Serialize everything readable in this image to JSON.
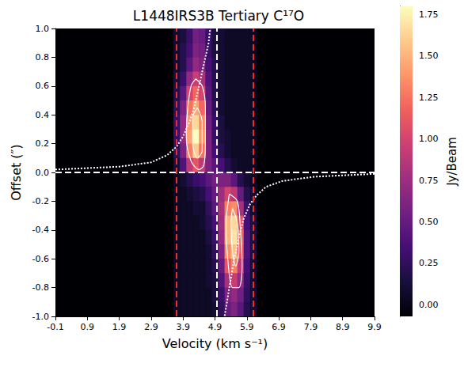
{
  "chart_data": {
    "type": "heatmap",
    "title": "L1448IRS3B Tertiary C¹⁷O",
    "x_label": "Velocity (km s⁻¹)",
    "y_label": "Offset (″)",
    "xlim": [
      -0.1,
      9.9
    ],
    "xticks": [
      -0.1,
      0.9,
      1.9,
      2.9,
      3.9,
      4.9,
      5.9,
      6.9,
      7.9,
      8.9,
      9.9
    ],
    "ylim": [
      -1.0,
      1.0
    ],
    "yticks": [
      {
        "value": -1.0,
        "label": "-1.0"
      },
      -0.8,
      -0.6,
      -0.4,
      -0.2,
      {
        "value": 0.0,
        "label": "0.0"
      },
      0.2,
      0.4,
      0.6,
      0.8,
      {
        "value": 1.0,
        "label": "1.0"
      }
    ],
    "grid": false,
    "cells": {
      "x": [
        3.7,
        3.9,
        4.1,
        4.3,
        4.5,
        4.7,
        4.9,
        5.1,
        5.3,
        5.5,
        5.7,
        5.9,
        6.1
      ],
      "y": [
        0.95,
        0.85,
        0.75,
        0.65,
        0.55,
        0.45,
        0.35,
        0.25,
        0.15,
        0.05,
        -0.05,
        -0.15,
        -0.25,
        -0.35,
        -0.45,
        -0.55,
        -0.65,
        -0.75,
        -0.85,
        -0.95
      ],
      "values": [
        [
          0.1,
          0.15,
          0.3,
          0.55,
          0.5,
          0.3,
          0.15,
          0.1,
          0.05,
          0.05,
          0.05,
          0.05,
          0.05
        ],
        [
          0.1,
          0.2,
          0.35,
          0.6,
          0.55,
          0.3,
          0.15,
          0.1,
          0.05,
          0.05,
          0.05,
          0.05,
          0.05
        ],
        [
          0.1,
          0.2,
          0.45,
          0.7,
          0.6,
          0.35,
          0.2,
          0.1,
          0.05,
          0.05,
          0.05,
          0.05,
          0.05
        ],
        [
          0.15,
          0.3,
          0.7,
          0.95,
          0.8,
          0.4,
          0.2,
          0.1,
          0.05,
          0.05,
          0.05,
          0.05,
          0.05
        ],
        [
          0.2,
          0.45,
          1.0,
          1.2,
          1.0,
          0.45,
          0.2,
          0.1,
          0.05,
          0.05,
          0.05,
          0.05,
          0.05
        ],
        [
          0.25,
          0.6,
          1.25,
          1.45,
          1.2,
          0.5,
          0.25,
          0.1,
          0.05,
          0.05,
          0.05,
          0.05,
          0.05
        ],
        [
          0.3,
          0.7,
          1.4,
          1.65,
          1.35,
          0.55,
          0.3,
          0.15,
          0.05,
          0.05,
          0.05,
          0.05,
          0.05
        ],
        [
          0.3,
          0.7,
          1.45,
          1.8,
          1.4,
          0.6,
          0.3,
          0.15,
          0.1,
          0.05,
          0.05,
          0.05,
          0.05
        ],
        [
          0.25,
          0.6,
          1.3,
          1.6,
          1.25,
          0.6,
          0.35,
          0.2,
          0.1,
          0.05,
          0.05,
          0.05,
          0.05
        ],
        [
          0.15,
          0.4,
          0.9,
          1.1,
          0.9,
          0.6,
          0.45,
          0.35,
          0.2,
          0.1,
          0.05,
          0.05,
          0.05
        ],
        [
          0.05,
          0.1,
          0.2,
          0.3,
          0.35,
          0.45,
          0.55,
          0.6,
          0.6,
          0.45,
          0.2,
          0.1,
          0.05
        ],
        [
          0.05,
          0.05,
          0.1,
          0.15,
          0.2,
          0.35,
          0.5,
          0.75,
          1.0,
          0.9,
          0.5,
          0.2,
          0.1
        ],
        [
          0.05,
          0.05,
          0.05,
          0.1,
          0.1,
          0.25,
          0.45,
          0.8,
          1.3,
          1.35,
          0.8,
          0.3,
          0.1
        ],
        [
          0.05,
          0.05,
          0.05,
          0.05,
          0.1,
          0.2,
          0.35,
          0.75,
          1.5,
          1.65,
          1.1,
          0.35,
          0.15
        ],
        [
          0.05,
          0.05,
          0.05,
          0.05,
          0.05,
          0.15,
          0.3,
          0.7,
          1.5,
          1.7,
          1.2,
          0.4,
          0.15
        ],
        [
          0.05,
          0.05,
          0.05,
          0.05,
          0.05,
          0.1,
          0.25,
          0.6,
          1.35,
          1.55,
          1.1,
          0.4,
          0.15
        ],
        [
          0.05,
          0.05,
          0.05,
          0.05,
          0.05,
          0.1,
          0.2,
          0.5,
          1.1,
          1.3,
          0.9,
          0.35,
          0.1
        ],
        [
          0.05,
          0.05,
          0.05,
          0.05,
          0.05,
          0.1,
          0.15,
          0.4,
          0.8,
          0.95,
          0.7,
          0.3,
          0.1
        ],
        [
          0.05,
          0.05,
          0.05,
          0.05,
          0.05,
          0.05,
          0.15,
          0.3,
          0.6,
          0.7,
          0.55,
          0.25,
          0.1
        ],
        [
          0.05,
          0.05,
          0.05,
          0.05,
          0.05,
          0.05,
          0.1,
          0.25,
          0.5,
          0.6,
          0.45,
          0.2,
          0.1
        ]
      ]
    },
    "colorbar": {
      "label": "Jy/Beam",
      "range": [
        -0.07,
        1.8
      ],
      "ticks": [
        {
          "value": 0,
          "label": "0.00"
        },
        {
          "value": 0.25,
          "label": "0.25"
        },
        {
          "value": 0.5,
          "label": "0.50"
        },
        {
          "value": 0.75,
          "label": "0.75"
        },
        {
          "value": 1.0,
          "label": "1.00"
        },
        {
          "value": 1.25,
          "label": "1.25"
        },
        {
          "value": 1.5,
          "label": "1.50"
        },
        {
          "value": 1.75,
          "label": "1.75"
        }
      ]
    },
    "lines": [
      {
        "type": "vline",
        "value": 3.7,
        "color": "#e8302a",
        "line_style": "dashed"
      },
      {
        "type": "vline",
        "value": 6.1,
        "color": "#e8302a",
        "line_style": "dashed"
      },
      {
        "type": "vline",
        "value": 4.95,
        "color": "#ffffff",
        "line_style": "dashed"
      },
      {
        "type": "hline",
        "value": 0.0,
        "color": "#ffffff",
        "line_style": "dashed"
      }
    ],
    "series": [
      {
        "type": "line",
        "color": "#ffffff",
        "line_style": "dotted",
        "values": [
          [
            -0.1,
            0.02
          ],
          [
            1.9,
            0.04
          ],
          [
            2.9,
            0.07
          ],
          [
            3.4,
            0.12
          ],
          [
            3.7,
            0.18
          ],
          [
            3.9,
            0.25
          ],
          [
            4.1,
            0.35
          ],
          [
            4.25,
            0.45
          ],
          [
            4.4,
            0.6
          ],
          [
            4.55,
            0.75
          ],
          [
            4.7,
            0.9
          ],
          [
            4.75,
            1.0
          ]
        ]
      },
      {
        "type": "line",
        "color": "#ffffff",
        "line_style": "dotted",
        "values": [
          [
            9.9,
            -0.01
          ],
          [
            8.0,
            -0.03
          ],
          [
            7.0,
            -0.06
          ],
          [
            6.5,
            -0.1
          ],
          [
            6.2,
            -0.16
          ],
          [
            6.0,
            -0.22
          ],
          [
            5.8,
            -0.32
          ],
          [
            5.65,
            -0.45
          ],
          [
            5.5,
            -0.6
          ],
          [
            5.35,
            -0.8
          ],
          [
            5.2,
            -1.0
          ]
        ]
      },
      {
        "type": "contour",
        "color": "#ffffff",
        "line_style": "solid",
        "values": [
          [
            4.3,
            0.65
          ],
          [
            4.5,
            0.6
          ],
          [
            4.6,
            0.45
          ],
          [
            4.6,
            0.2
          ],
          [
            4.55,
            0.05
          ],
          [
            4.4,
            0.02
          ],
          [
            4.15,
            0.08
          ],
          [
            4.0,
            0.25
          ],
          [
            4.05,
            0.45
          ],
          [
            4.15,
            0.6
          ],
          [
            4.3,
            0.65
          ]
        ]
      },
      {
        "type": "contour",
        "color": "#ffffff",
        "line_style": "solid",
        "values": [
          [
            4.35,
            0.45
          ],
          [
            4.5,
            0.35
          ],
          [
            4.5,
            0.15
          ],
          [
            4.35,
            0.1
          ],
          [
            4.2,
            0.2
          ],
          [
            4.2,
            0.38
          ],
          [
            4.35,
            0.45
          ]
        ]
      },
      {
        "type": "contour",
        "color": "#ffffff",
        "line_style": "solid",
        "values": [
          [
            5.35,
            -0.15
          ],
          [
            5.6,
            -0.2
          ],
          [
            5.7,
            -0.4
          ],
          [
            5.75,
            -0.65
          ],
          [
            5.65,
            -0.8
          ],
          [
            5.45,
            -0.8
          ],
          [
            5.3,
            -0.6
          ],
          [
            5.25,
            -0.35
          ],
          [
            5.35,
            -0.15
          ]
        ]
      },
      {
        "type": "contour",
        "color": "#ffffff",
        "line_style": "solid",
        "values": [
          [
            5.45,
            -0.25
          ],
          [
            5.6,
            -0.35
          ],
          [
            5.65,
            -0.55
          ],
          [
            5.55,
            -0.65
          ],
          [
            5.45,
            -0.55
          ],
          [
            5.4,
            -0.35
          ],
          [
            5.45,
            -0.25
          ]
        ]
      }
    ]
  }
}
